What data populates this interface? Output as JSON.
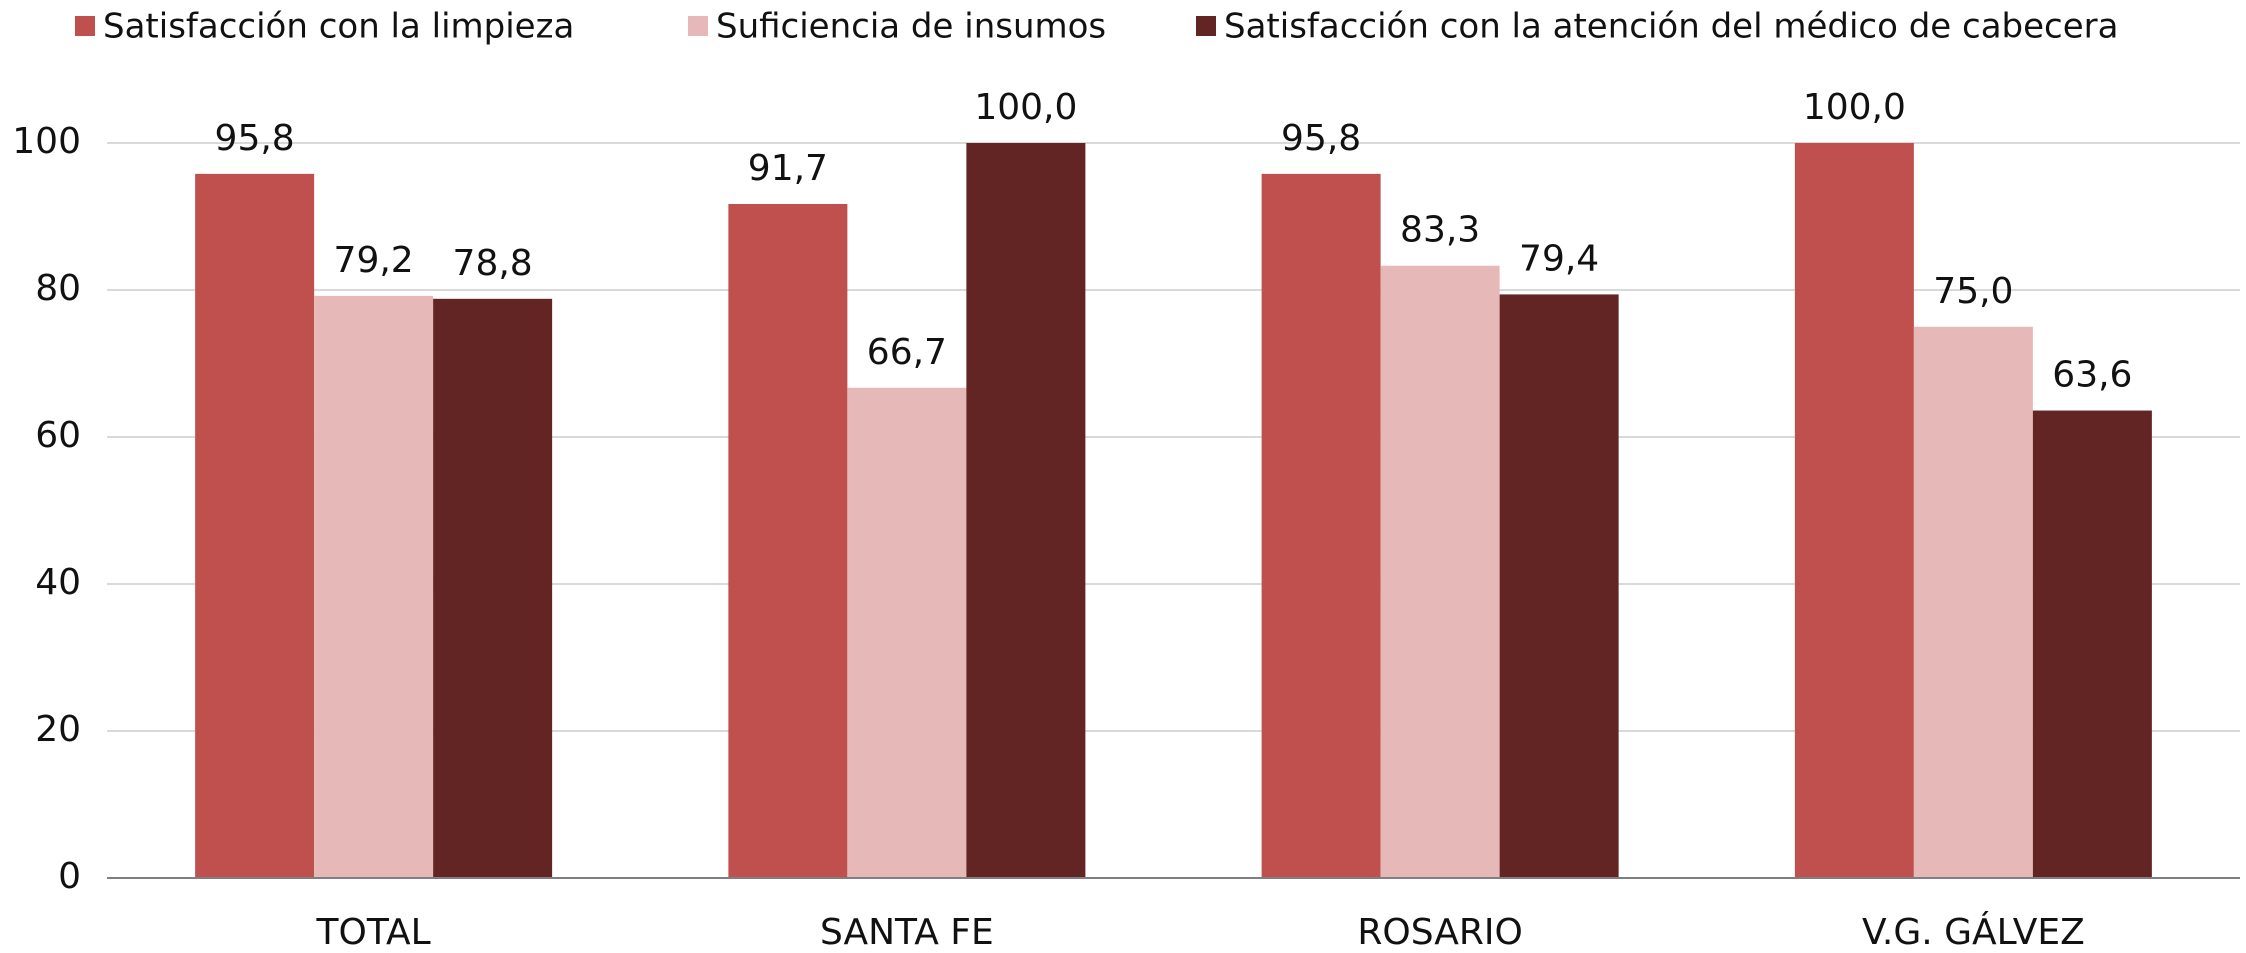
{
  "chart_data": {
    "type": "bar",
    "categories": [
      "TOTAL",
      "SANTA FE",
      "ROSARIO",
      "V.G. GÁLVEZ"
    ],
    "series": [
      {
        "name": "Satisfacción con la limpieza",
        "color": "#c0504d",
        "values": [
          95.8,
          91.7,
          95.8,
          100.0
        ],
        "value_labels": [
          "95,8",
          "91,7",
          "95,8",
          "100,0"
        ]
      },
      {
        "name": "Suficiencia de insumos",
        "color": "#e6b9b8",
        "values": [
          79.2,
          66.7,
          83.3,
          75.0
        ],
        "value_labels": [
          "79,2",
          "66,7",
          "83,3",
          "75,0"
        ]
      },
      {
        "name": "Satisfacción con la atención del médico de cabecera",
        "color": "#632523",
        "values": [
          78.8,
          100.0,
          79.4,
          63.6
        ],
        "value_labels": [
          "78,8",
          "100,0",
          "79,4",
          "63,6"
        ]
      }
    ],
    "ylim": [
      0,
      100
    ],
    "yticks": [
      0,
      20,
      40,
      60,
      80,
      100
    ],
    "grid": true,
    "legend": "top"
  }
}
